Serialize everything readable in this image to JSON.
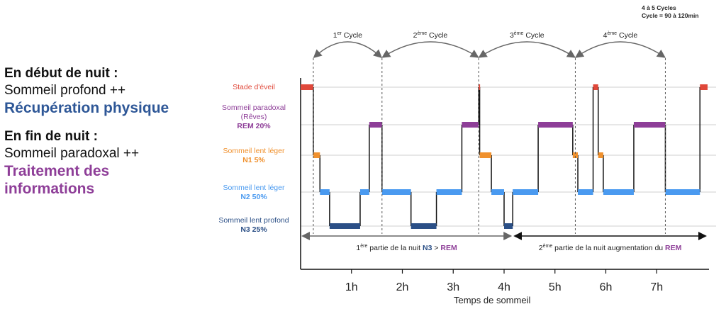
{
  "left_panel": {
    "block1": {
      "heading": "En début de nuit :",
      "line": "Sommeil profond ++",
      "emphasis": "Récupération physique",
      "emphasis_color": "#2e5797"
    },
    "block2": {
      "heading": "En fin de nuit :",
      "line": "Sommeil paradoxal ++",
      "emphasis_line1": "Traitement des",
      "emphasis_line2": "informations",
      "emphasis_color": "#8e3e98"
    }
  },
  "cycles_note": {
    "line1": "4 à 5 Cycles",
    "line2": "Cycle = 90 à 120min"
  },
  "chart_data": {
    "type": "line",
    "title": "",
    "xlabel": "Temps de sommeil",
    "ylabel": "",
    "x_unit": "hours",
    "xlim": [
      0,
      8
    ],
    "x_ticks": [
      1,
      2,
      3,
      4,
      5,
      6,
      7
    ],
    "x_tick_labels": [
      "1h",
      "2h",
      "3h",
      "4h",
      "5h",
      "6h",
      "7h"
    ],
    "grid": true,
    "stages": [
      {
        "key": "wake",
        "label": "Stade d'éveil",
        "pct": "",
        "color": "#e0483a"
      },
      {
        "key": "rem",
        "label": "Sommeil paradoxal",
        "sublabel": "(Rêves)",
        "pct": "REM 20%",
        "color": "#8e3e98"
      },
      {
        "key": "n1",
        "label": "Sommeil lent léger",
        "pct": "N1 5%",
        "color": "#f0912e"
      },
      {
        "key": "n2",
        "label": "Sommeil lent léger",
        "pct": "N2 50%",
        "color": "#4a9af0"
      },
      {
        "key": "n3",
        "label": "Sommeil lent profond",
        "pct": "N3 25%",
        "color": "#2b4f86"
      }
    ],
    "hypnogram": [
      {
        "stage": "wake",
        "start": 0.0,
        "end": 0.25
      },
      {
        "stage": "n1",
        "start": 0.25,
        "end": 0.38
      },
      {
        "stage": "n2",
        "start": 0.38,
        "end": 0.57
      },
      {
        "stage": "n3",
        "start": 0.57,
        "end": 1.17
      },
      {
        "stage": "n2",
        "start": 1.17,
        "end": 1.35
      },
      {
        "stage": "rem",
        "start": 1.35,
        "end": 1.6
      },
      {
        "stage": "n2",
        "start": 1.6,
        "end": 2.17
      },
      {
        "stage": "n3",
        "start": 2.17,
        "end": 2.67
      },
      {
        "stage": "n2",
        "start": 2.67,
        "end": 3.17
      },
      {
        "stage": "rem",
        "start": 3.17,
        "end": 3.5
      },
      {
        "stage": "wake",
        "start": 3.5,
        "end": 3.52
      },
      {
        "stage": "n1",
        "start": 3.52,
        "end": 3.75
      },
      {
        "stage": "n2",
        "start": 3.75,
        "end": 4.0
      },
      {
        "stage": "n3",
        "start": 4.0,
        "end": 4.17
      },
      {
        "stage": "n2",
        "start": 4.17,
        "end": 4.67
      },
      {
        "stage": "rem",
        "start": 4.67,
        "end": 5.35
      },
      {
        "stage": "n1",
        "start": 5.35,
        "end": 5.45
      },
      {
        "stage": "n2",
        "start": 5.45,
        "end": 5.75
      },
      {
        "stage": "wake",
        "start": 5.75,
        "end": 5.85
      },
      {
        "stage": "n1",
        "start": 5.85,
        "end": 5.95
      },
      {
        "stage": "n2",
        "start": 5.95,
        "end": 6.55
      },
      {
        "stage": "rem",
        "start": 6.55,
        "end": 7.17
      },
      {
        "stage": "n2",
        "start": 7.17,
        "end": 7.85
      },
      {
        "stage": "wake",
        "start": 7.85,
        "end": 8.0
      }
    ],
    "cycles": [
      {
        "label_num": "1",
        "label_sup": "er",
        "label_rest": " Cycle",
        "start": 0.25,
        "end": 1.6
      },
      {
        "label_num": "2",
        "label_sup": "ème",
        "label_rest": " Cycle",
        "start": 1.6,
        "end": 3.5
      },
      {
        "label_num": "3",
        "label_sup": "ème",
        "label_rest": " Cycle",
        "start": 3.5,
        "end": 5.4
      },
      {
        "label_num": "4",
        "label_sup": "ème",
        "label_rest": " Cycle",
        "start": 5.4,
        "end": 7.17
      }
    ],
    "phases": [
      {
        "start": 0.0,
        "end": 4.17,
        "label_num": "1",
        "label_sup": "ère",
        "label_text": " partie de la nuit ",
        "highlight1": "N3",
        "highlight1_color": "#2b4f86",
        "mid": " > ",
        "highlight2": "REM",
        "highlight2_color": "#8e3e98"
      },
      {
        "start": 4.17,
        "end": 8.0,
        "label_num": "2",
        "label_sup": "ème",
        "label_text": " partie de la nuit augmentation du ",
        "highlight1": "",
        "highlight1_color": "",
        "mid": "",
        "highlight2": "REM",
        "highlight2_color": "#8e3e98"
      }
    ]
  }
}
